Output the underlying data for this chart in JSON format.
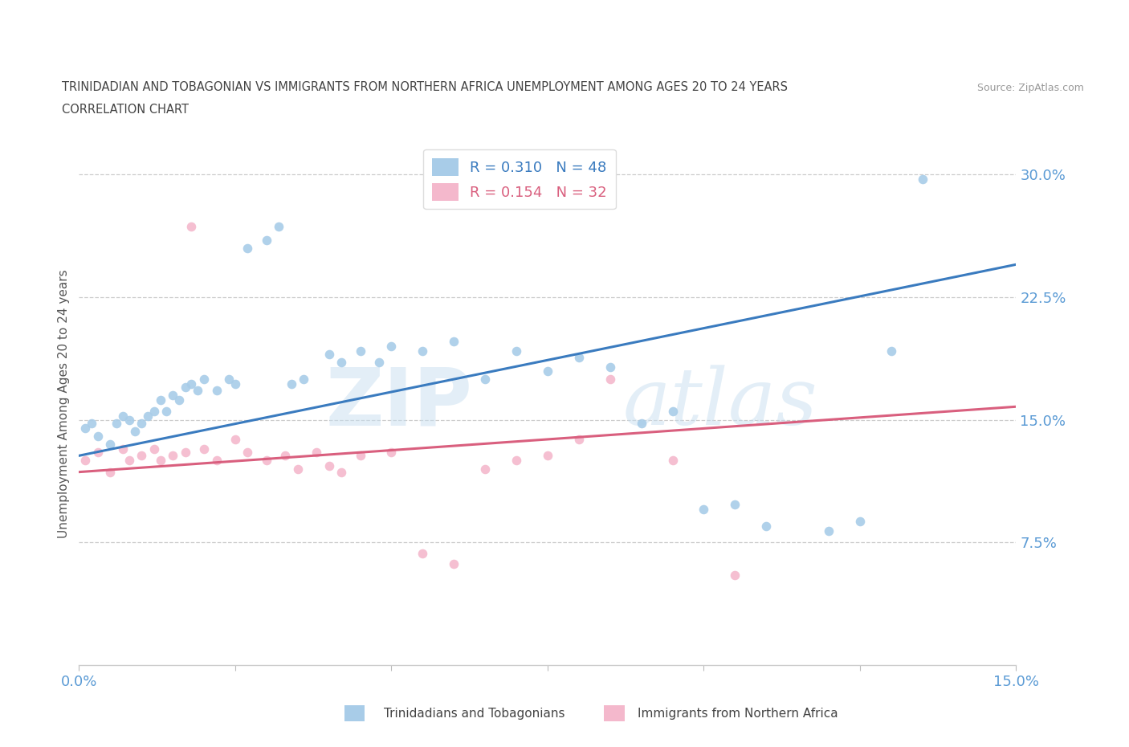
{
  "title_line1": "TRINIDADIAN AND TOBAGONIAN VS IMMIGRANTS FROM NORTHERN AFRICA UNEMPLOYMENT AMONG AGES 20 TO 24 YEARS",
  "title_line2": "CORRELATION CHART",
  "source_text": "Source: ZipAtlas.com",
  "ylabel": "Unemployment Among Ages 20 to 24 years",
  "xlim": [
    0.0,
    0.15
  ],
  "ylim": [
    0.0,
    0.32
  ],
  "xticks": [
    0.0,
    0.025,
    0.05,
    0.075,
    0.1,
    0.125,
    0.15
  ],
  "yticks": [
    0.075,
    0.15,
    0.225,
    0.3
  ],
  "legend_R1": "R = 0.310",
  "legend_N1": "N = 48",
  "legend_R2": "R = 0.154",
  "legend_N2": "N = 32",
  "watermark_zip": "ZIP",
  "watermark_atlas": "atlas",
  "blue_color": "#a8cce8",
  "pink_color": "#f4b8cc",
  "blue_line_color": "#3a7bbf",
  "pink_line_color": "#d95f7e",
  "grid_color": "#cccccc",
  "title_color": "#444444",
  "tick_color": "#5b9bd5",
  "blue_scatter_x": [
    0.001,
    0.002,
    0.003,
    0.005,
    0.006,
    0.007,
    0.008,
    0.009,
    0.01,
    0.011,
    0.012,
    0.013,
    0.014,
    0.015,
    0.016,
    0.017,
    0.018,
    0.019,
    0.02,
    0.022,
    0.024,
    0.025,
    0.027,
    0.03,
    0.032,
    0.034,
    0.036,
    0.04,
    0.042,
    0.045,
    0.048,
    0.05,
    0.055,
    0.06,
    0.065,
    0.07,
    0.075,
    0.08,
    0.085,
    0.09,
    0.095,
    0.1,
    0.105,
    0.11,
    0.12,
    0.125,
    0.13,
    0.135
  ],
  "blue_scatter_y": [
    0.145,
    0.148,
    0.14,
    0.135,
    0.148,
    0.152,
    0.15,
    0.143,
    0.148,
    0.152,
    0.155,
    0.162,
    0.155,
    0.165,
    0.162,
    0.17,
    0.172,
    0.168,
    0.175,
    0.168,
    0.175,
    0.172,
    0.255,
    0.26,
    0.268,
    0.172,
    0.175,
    0.19,
    0.185,
    0.192,
    0.185,
    0.195,
    0.192,
    0.198,
    0.175,
    0.192,
    0.18,
    0.188,
    0.182,
    0.148,
    0.155,
    0.095,
    0.098,
    0.085,
    0.082,
    0.088,
    0.192,
    0.297
  ],
  "pink_scatter_x": [
    0.001,
    0.003,
    0.005,
    0.007,
    0.008,
    0.01,
    0.012,
    0.013,
    0.015,
    0.017,
    0.018,
    0.02,
    0.022,
    0.025,
    0.027,
    0.03,
    0.033,
    0.035,
    0.038,
    0.04,
    0.042,
    0.045,
    0.05,
    0.055,
    0.06,
    0.065,
    0.07,
    0.075,
    0.08,
    0.085,
    0.095,
    0.105
  ],
  "pink_scatter_y": [
    0.125,
    0.13,
    0.118,
    0.132,
    0.125,
    0.128,
    0.132,
    0.125,
    0.128,
    0.13,
    0.268,
    0.132,
    0.125,
    0.138,
    0.13,
    0.125,
    0.128,
    0.12,
    0.13,
    0.122,
    0.118,
    0.128,
    0.13,
    0.068,
    0.062,
    0.12,
    0.125,
    0.128,
    0.138,
    0.175,
    0.125,
    0.055
  ],
  "blue_line_x": [
    0.0,
    0.15
  ],
  "blue_line_y": [
    0.128,
    0.245
  ],
  "pink_line_x": [
    0.0,
    0.15
  ],
  "pink_line_y": [
    0.118,
    0.158
  ]
}
